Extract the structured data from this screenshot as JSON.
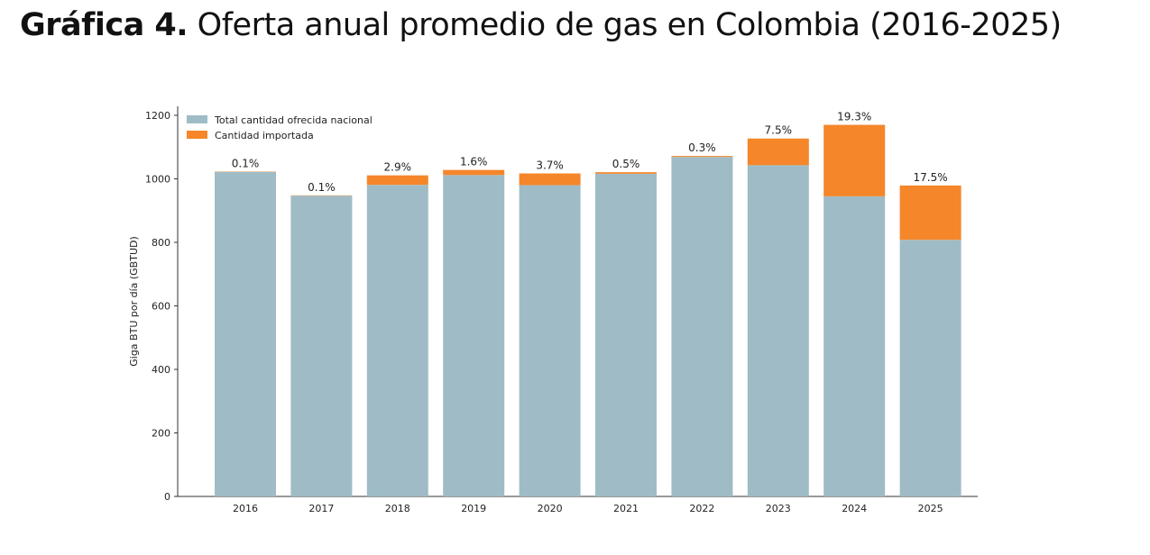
{
  "title": {
    "bold": "Gráfica 4.",
    "rest": "Oferta anual promedio de gas en Colombia (2016-2025)"
  },
  "chart_data": {
    "type": "bar",
    "stacked": true,
    "categories": [
      "2016",
      "2017",
      "2018",
      "2019",
      "2020",
      "2021",
      "2022",
      "2023",
      "2024",
      "2025"
    ],
    "series": [
      {
        "name": "Total cantidad ofrecida nacional",
        "color": "#9fbcc6",
        "values": [
          1022,
          947,
          981,
          1012,
          980,
          1016,
          1069,
          1043,
          945,
          808
        ]
      },
      {
        "name": "Cantidad importada",
        "color": "#f5862a",
        "values": [
          1,
          1,
          30,
          16,
          37,
          5,
          3,
          84,
          225,
          171
        ]
      }
    ],
    "percent_labels": [
      "0.1%",
      "0.1%",
      "2.9%",
      "1.6%",
      "3.7%",
      "0.5%",
      "0.3%",
      "7.5%",
      "19.3%",
      "17.5%"
    ],
    "ylabel": "Giga BTU por día (GBTUD)",
    "xlabel": "",
    "ylim": [
      0,
      1200
    ],
    "yticks": [
      0,
      200,
      400,
      600,
      800,
      1000,
      1200
    ],
    "grid": false,
    "legend_position": "top-left"
  }
}
